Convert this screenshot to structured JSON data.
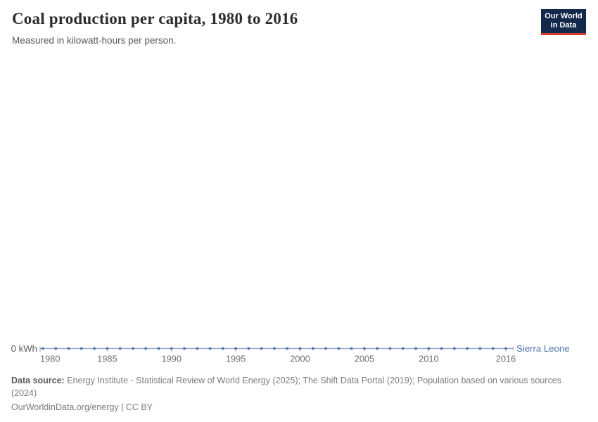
{
  "header": {
    "title": "Coal production per capita, 1980 to 2016",
    "subtitle": "Measured in kilowatt-hours per person."
  },
  "logo": {
    "line1": "Our World",
    "line2": "in Data",
    "bg_color": "#12294b",
    "bar_color": "#dc3a2a"
  },
  "chart_data": {
    "type": "line",
    "title": "Coal production per capita, 1980 to 2016",
    "unit": "kilowatt-hours per person",
    "x": [
      1980,
      1981,
      1982,
      1983,
      1984,
      1985,
      1986,
      1987,
      1988,
      1989,
      1990,
      1991,
      1992,
      1993,
      1994,
      1995,
      1996,
      1997,
      1998,
      1999,
      2000,
      2001,
      2002,
      2003,
      2004,
      2005,
      2006,
      2007,
      2008,
      2009,
      2010,
      2011,
      2012,
      2013,
      2014,
      2015,
      2016
    ],
    "series": [
      {
        "name": "Sierra Leone",
        "color": "#4e73ad",
        "values": [
          0,
          0,
          0,
          0,
          0,
          0,
          0,
          0,
          0,
          0,
          0,
          0,
          0,
          0,
          0,
          0,
          0,
          0,
          0,
          0,
          0,
          0,
          0,
          0,
          0,
          0,
          0,
          0,
          0,
          0,
          0,
          0,
          0,
          0,
          0,
          0,
          0
        ]
      }
    ],
    "x_tick_labels": [
      "1980",
      "1985",
      "1990",
      "1995",
      "2000",
      "2005",
      "2010",
      "2016"
    ],
    "y_tick_labels": [
      "0 kWh"
    ],
    "xlim": [
      1980,
      2016
    ],
    "ylim": [
      0,
      0
    ],
    "grid": false,
    "markers": true,
    "legend_position": "label-at-line-end"
  },
  "footer": {
    "source_label": "Data source:",
    "source_text": "Energy Institute - Statistical Review of World Energy (2025); The Shift Data Portal (2019); Population based on various sources (2024)",
    "license": "OurWorldinData.org/energy | CC BY"
  }
}
